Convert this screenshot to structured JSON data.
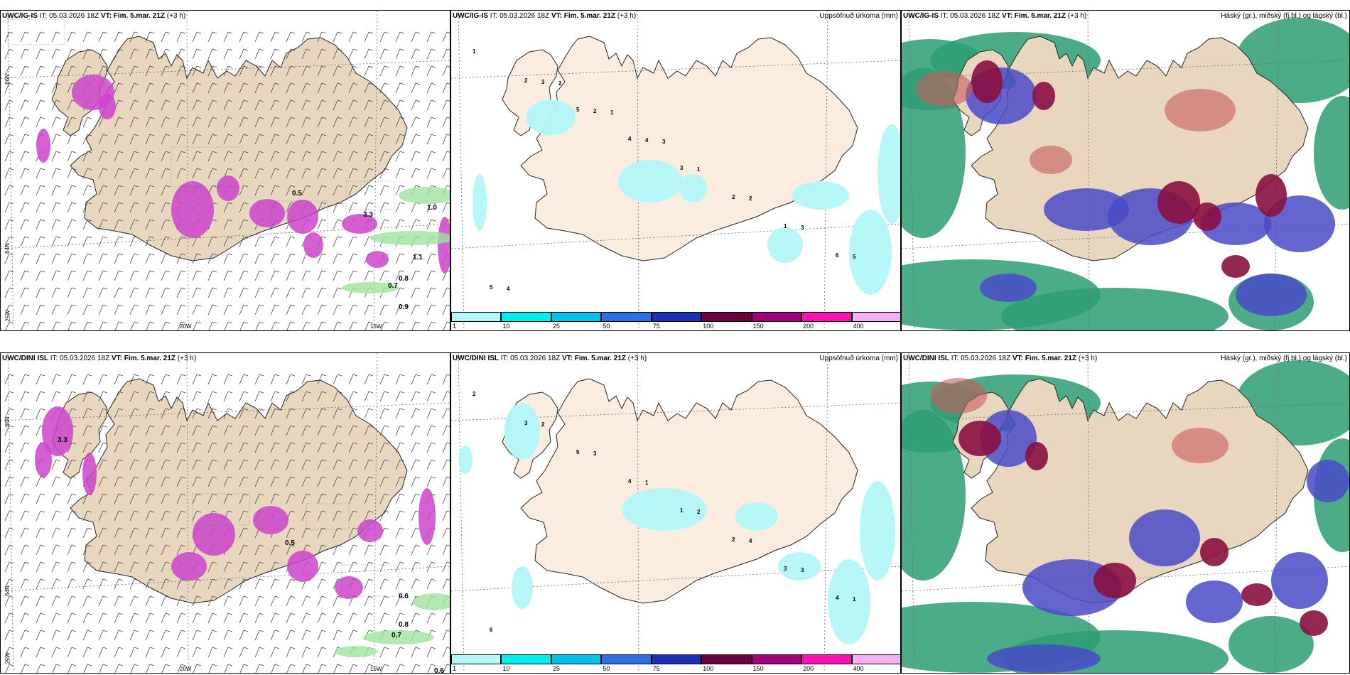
{
  "panels": [
    {
      "model": "UWC/IG-IS",
      "it_label": "IT:",
      "it": "05.03.2026 18Z",
      "vt_label": "VT:",
      "vt": "Fim. 5.mar. 21Z",
      "lead": "(+3 h)",
      "right_title": ""
    },
    {
      "model": "UWC/IG-IS",
      "it_label": "IT:",
      "it": "05.03.2026 18Z",
      "vt_label": "VT:",
      "vt": "Fim. 5.mar. 21Z",
      "lead": "(+3 h)",
      "right_title": "Uppsöfnuð úrkoma (mm)"
    },
    {
      "model": "UWC/IG-IS",
      "it_label": "IT:",
      "it": "05.03.2026 18Z",
      "vt_label": "VT:",
      "vt": "Fim. 5.mar. 21Z",
      "lead": "(+3 h)",
      "right_title": "Háský (gr.), miðský (fj.bl.) og lágský (bl.)"
    },
    {
      "model": "UWC/DINI ISL",
      "it_label": "IT:",
      "it": "05.03.2026 18Z",
      "vt_label": "VT:",
      "vt": "Fim. 5.mar. 21Z",
      "lead": "(+3 h)",
      "right_title": ""
    },
    {
      "model": "UWC/DINI ISL",
      "it_label": "IT:",
      "it": "05.03.2026 18Z",
      "vt_label": "VT:",
      "vt": "Fim. 5.mar. 21Z",
      "lead": "(+3 h)",
      "right_title": "Uppsöfnuð úrkoma (mm)"
    },
    {
      "model": "UWC/DINI ISL",
      "it_label": "IT:",
      "it": "05.03.2026 18Z",
      "vt_label": "VT:",
      "vt": "Fim. 5.mar. 21Z",
      "lead": "(+3 h)",
      "right_title": "Háský (gr.), miðský (fj.bl.) og lágský (bl.)"
    }
  ],
  "axis_labels": {
    "lat_66": "66N",
    "lat_64": "64N",
    "lat_bottom": "25W",
    "lon_20": "20W",
    "lon_15": "15W"
  },
  "colorbar": {
    "labels": [
      "1",
      "10",
      "25",
      "50",
      "75",
      "100",
      "150",
      "200",
      "400"
    ],
    "colors": [
      "#b3f7f7",
      "#00eeee",
      "#00c0ee",
      "#2e6fe6",
      "#1c2fb5",
      "#6b0040",
      "#a0007a",
      "#ff10b0",
      "#f3b0f3"
    ]
  },
  "colors": {
    "land": "#e8d6bf",
    "land_precip": "#fbece0",
    "precip_light": "#b3f7f7",
    "snow": "#cc44cc",
    "high_cloud": "#2e9e73",
    "mid_cloud": "#4a4ac8",
    "low_cloud": "#8a1040"
  },
  "wind_labels_top": [
    "3.3",
    "0.5",
    "1.1",
    "0.8",
    "0.7",
    "0.9",
    "1.0"
  ],
  "wind_labels_bottom": [
    "3.3",
    "0.8",
    "0.5",
    "0.6",
    "0.7",
    "0.6"
  ],
  "precip_labels_top": [
    "1",
    "2",
    "5",
    "4",
    "3",
    "2",
    "1",
    "6",
    "5",
    "3",
    "2",
    "4",
    "1",
    "2",
    "3",
    "5",
    "4",
    "2",
    "1",
    "3"
  ],
  "precip_labels_bottom": [
    "2",
    "3",
    "5",
    "4",
    "1",
    "2",
    "3",
    "4",
    "6",
    "2",
    "3",
    "1",
    "2",
    "4",
    "3",
    "1"
  ]
}
